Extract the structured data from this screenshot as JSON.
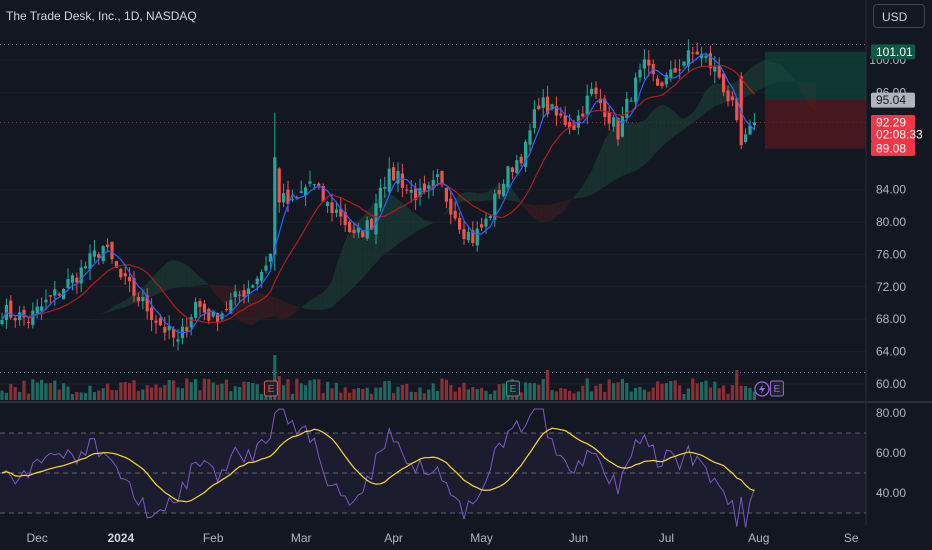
{
  "header": {
    "title": "The Trade Desk, Inc., 1D, NASDAQ",
    "currency": "USD"
  },
  "colors": {
    "background": "#131722",
    "up": "#26a69a",
    "down": "#ef5350",
    "conversion_line": "#2962ff",
    "base_line": "#b71c1c",
    "rsi": "#7e57c2",
    "rsi_ma": "#fdd835",
    "axis_text": "#b2b5be",
    "target_zone": "#0e4d3e",
    "stop_zone": "#5b1a20"
  },
  "chart_data": {
    "type": "candlestick",
    "price_axis": {
      "ticks": [
        "100.00",
        "96.00",
        "84.00",
        "80.00",
        "76.00",
        "72.00",
        "68.00",
        "64.00",
        "60.00"
      ],
      "tick_values": [
        100,
        96,
        84,
        80,
        76,
        72,
        68,
        64,
        60
      ]
    },
    "price_labels": [
      {
        "text": "101.01",
        "value": 101.01,
        "color": "#0e5b45"
      },
      {
        "text": "95.04",
        "value": 95.04,
        "color": "#b2b5be"
      },
      {
        "text": "92.29",
        "value": 92.29,
        "color": "#f23645"
      },
      {
        "text": "02:08:33",
        "value": 90.8,
        "color": "#f23645"
      },
      {
        "text": "89.08",
        "value": 89.08,
        "color": "#f23645"
      }
    ],
    "time_axis": {
      "labels": [
        {
          "text": "Dec",
          "idx": 8
        },
        {
          "text": "2024",
          "idx": 27
        },
        {
          "text": "Feb",
          "idx": 48
        },
        {
          "text": "Mar",
          "idx": 68
        },
        {
          "text": "Apr",
          "idx": 89
        },
        {
          "text": "May",
          "idx": 109
        },
        {
          "text": "Jun",
          "idx": 131
        },
        {
          "text": "Jul",
          "idx": 151
        },
        {
          "text": "Aug",
          "idx": 172
        },
        {
          "text": "Se",
          "idx": 193
        }
      ]
    },
    "rsi": {
      "ticks": [
        "80.00",
        "60.00",
        "40.00"
      ],
      "tick_values": [
        80,
        60,
        40
      ],
      "bands": [
        70,
        50,
        30
      ]
    },
    "event_markers": [
      {
        "text": "E",
        "idx": 61
      },
      {
        "text": "E",
        "idx": 116
      },
      {
        "text": "E",
        "idx": 176
      }
    ],
    "series": [
      {
        "name": "close_path",
        "waypoints": [
          [
            0,
            69
          ],
          [
            6,
            68
          ],
          [
            12,
            71
          ],
          [
            18,
            74
          ],
          [
            23,
            77
          ],
          [
            27,
            73
          ],
          [
            32,
            70
          ],
          [
            35,
            68
          ],
          [
            40,
            65
          ],
          [
            44,
            70
          ],
          [
            48,
            68
          ],
          [
            52,
            70
          ],
          [
            56,
            72
          ],
          [
            59,
            74
          ],
          [
            61,
            76
          ],
          [
            62,
            86
          ],
          [
            63,
            83
          ],
          [
            66,
            82
          ],
          [
            70,
            85
          ],
          [
            74,
            82
          ],
          [
            77,
            81
          ],
          [
            80,
            78
          ],
          [
            84,
            80
          ],
          [
            86,
            85
          ],
          [
            90,
            86
          ],
          [
            92,
            84
          ],
          [
            96,
            83
          ],
          [
            99,
            85
          ],
          [
            103,
            81
          ],
          [
            105,
            79
          ],
          [
            107,
            78
          ],
          [
            110,
            80
          ],
          [
            113,
            84
          ],
          [
            116,
            87
          ],
          [
            119,
            89
          ],
          [
            122,
            95
          ],
          [
            126,
            93
          ],
          [
            130,
            92
          ],
          [
            134,
            96
          ],
          [
            137,
            94
          ],
          [
            140,
            91
          ],
          [
            143,
            96
          ],
          [
            146,
            99
          ],
          [
            149,
            97
          ],
          [
            152,
            98
          ],
          [
            155,
            100
          ],
          [
            158,
            101
          ],
          [
            160,
            100
          ],
          [
            163,
            98
          ],
          [
            166,
            94
          ],
          [
            168,
            89
          ],
          [
            170,
            91
          ],
          [
            171,
            92.3
          ]
        ]
      }
    ]
  }
}
